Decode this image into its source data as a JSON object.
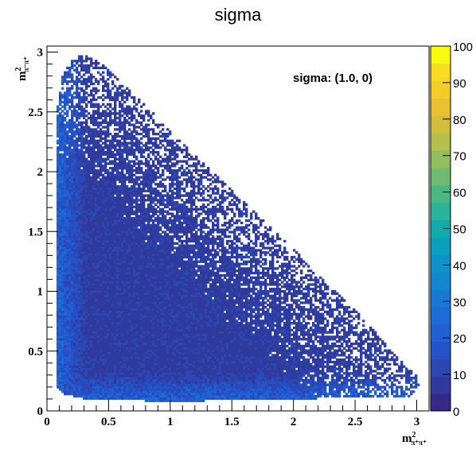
{
  "title": "sigma",
  "annotation": "sigma: (1.0, 0)",
  "chart_data": {
    "type": "heatmap",
    "title": "sigma",
    "xlabel": {
      "base": "m",
      "sup": "2",
      "sub": "π⁺π⁺"
    },
    "ylabel": {
      "base": "m",
      "sup": "2",
      "sub": "π⁻π⁺"
    },
    "xlim": [
      0,
      3.1
    ],
    "ylim": [
      0,
      3.05
    ],
    "zlim": [
      0,
      100
    ],
    "x_ticks": [
      "0",
      "0.5",
      "1",
      "1.5",
      "2",
      "2.5",
      "3"
    ],
    "x_tick_values": [
      0,
      0.5,
      1,
      1.5,
      2,
      2.5,
      3
    ],
    "y_ticks": [
      "0",
      "0.5",
      "1",
      "1.5",
      "2",
      "2.5",
      "3"
    ],
    "y_tick_values": [
      0,
      0.5,
      1,
      1.5,
      2,
      2.5,
      3
    ],
    "z_ticks": [
      "0",
      "10",
      "20",
      "30",
      "40",
      "50",
      "60",
      "70",
      "80",
      "90",
      "100"
    ],
    "z_tick_values": [
      0,
      10,
      20,
      30,
      40,
      50,
      60,
      70,
      80,
      90,
      100
    ],
    "region": {
      "description": "Dalitz-plot kinematic boundary; roughly triangular, filled with bin counts between ~0 and ~25",
      "boundary": [
        [
          0.08,
          0.2
        ],
        [
          0.08,
          2.5
        ],
        [
          0.12,
          2.8
        ],
        [
          0.2,
          2.95
        ],
        [
          0.3,
          2.98
        ],
        [
          0.45,
          2.9
        ],
        [
          1.0,
          2.35
        ],
        [
          1.5,
          1.85
        ],
        [
          2.0,
          1.35
        ],
        [
          2.5,
          0.85
        ],
        [
          2.8,
          0.5
        ],
        [
          3.0,
          0.3
        ],
        [
          3.02,
          0.2
        ],
        [
          2.95,
          0.12
        ],
        [
          1.0,
          0.08
        ],
        [
          0.3,
          0.1
        ],
        [
          0.12,
          0.15
        ]
      ],
      "dense_edges_value": 22,
      "interior_value": 8,
      "low_value": 1
    },
    "colormap": [
      "#352a87",
      "#2f3a9c",
      "#2a47b4",
      "#2452c8",
      "#1f60d4",
      "#1c6dd7",
      "#1779d3",
      "#1286cf",
      "#0d93c9",
      "#0aa0bd",
      "#13aaac",
      "#28b39a",
      "#4bb884",
      "#6fbb70",
      "#92be5d",
      "#b4bf4c",
      "#d2bf3c",
      "#e8c230",
      "#f4cd28",
      "#f9dc22",
      "#f9fb0e"
    ],
    "legend": "right colorbar"
  }
}
